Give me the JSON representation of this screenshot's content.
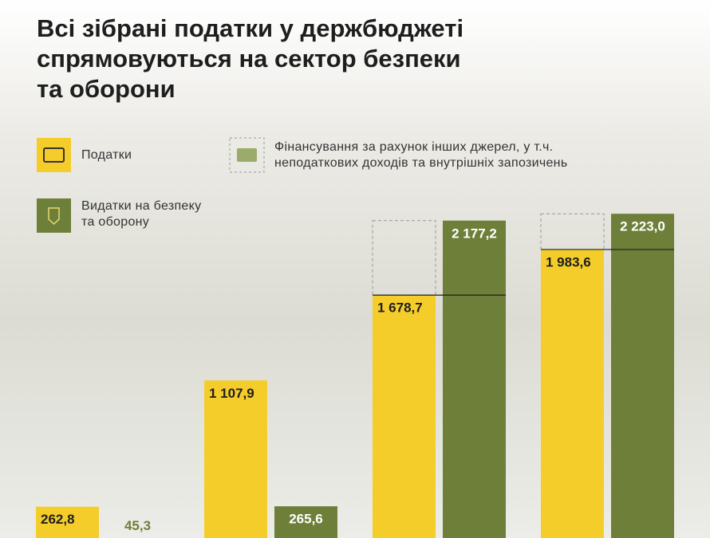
{
  "chart_data": {
    "type": "bar",
    "title": [
      "Всі зібрані податки у держбюджеті",
      "спрямовуються на сектор безпеки",
      "та оборони"
    ],
    "other_sources_legend": [
      "Фінансування за рахунок інших джерел, у т.ч.",
      "неподаткових доходів та внутрішніх запозичень"
    ],
    "categories": [
      null,
      null,
      null,
      null
    ],
    "series": [
      {
        "name": [
          "Податки"
        ],
        "color": "#f5cd2a",
        "values": [
          262.8,
          1107.9,
          1678.7,
          1983.6
        ],
        "value_labels": [
          "262,8",
          "1 107,9",
          "1 678,7",
          "1 983,6"
        ]
      },
      {
        "name": [
          "Видатки на безпеку",
          "та оборону"
        ],
        "color": "#6e7f3a",
        "values": [
          45.3,
          265.6,
          2177.2,
          2223.0
        ],
        "value_labels": [
          "45,3",
          "265,6",
          "2 177,2",
          "2 223,0"
        ]
      }
    ]
  }
}
